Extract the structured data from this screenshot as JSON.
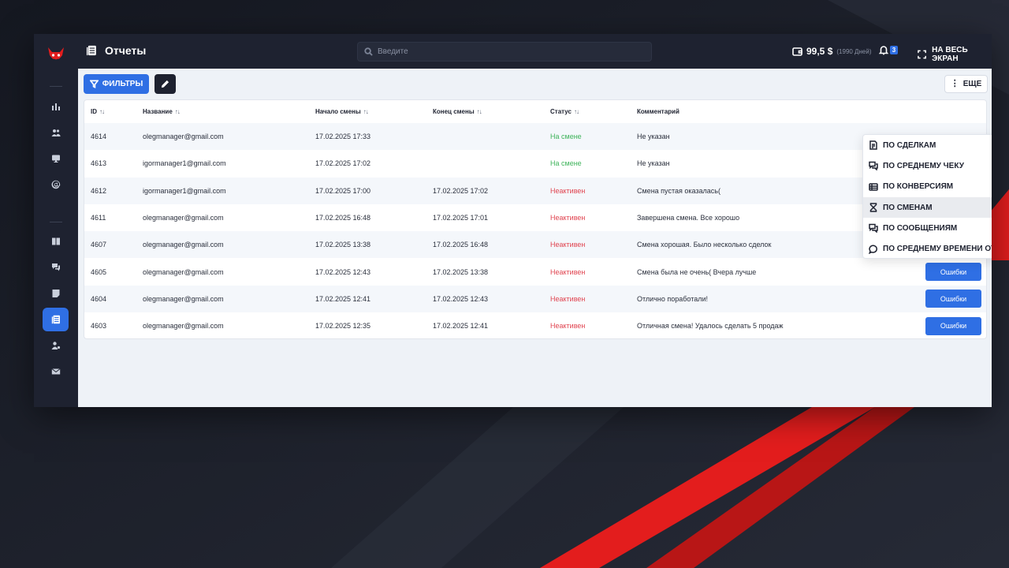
{
  "colors": {
    "accent": "#2f6fe4",
    "sidebar": "#1e2230",
    "active_status": "#3eb35a",
    "inactive_status": "#e0434f",
    "brand_red": "#e02020"
  },
  "header": {
    "title": "Отчеты",
    "title_icon": "reports-icon",
    "search_placeholder": "Введите",
    "balance_amount": "99,5 $",
    "balance_days": "(1990 Дней)",
    "notifications_count": "3",
    "fullscreen_label": "НА ВЕСЬ ЭКРАН"
  },
  "sidebar": {
    "items": [
      {
        "name": "stats",
        "icon": "bar-chart-icon",
        "active": false
      },
      {
        "name": "users",
        "icon": "users-icon",
        "active": false
      },
      {
        "name": "monitor",
        "icon": "monitor-icon",
        "active": false
      },
      {
        "name": "mentions",
        "icon": "at-icon",
        "active": false
      },
      {
        "name": "book",
        "icon": "book-icon",
        "active": false
      },
      {
        "name": "chat",
        "icon": "chat-icon",
        "active": false
      },
      {
        "name": "notes",
        "icon": "notes-icon",
        "active": false
      },
      {
        "name": "reports",
        "icon": "reports-icon",
        "active": true
      },
      {
        "name": "user-settings",
        "icon": "user-gear-icon",
        "active": false
      },
      {
        "name": "mail",
        "icon": "mail-icon",
        "active": false
      }
    ]
  },
  "toolbar": {
    "filters_label": "ФИЛЬТРЫ",
    "more_label": "ЕЩЕ"
  },
  "table": {
    "columns": [
      {
        "label": "ID",
        "sortable": true
      },
      {
        "label": "Название",
        "sortable": true
      },
      {
        "label": "Начало смены",
        "sortable": true
      },
      {
        "label": "Конец смены",
        "sortable": true
      },
      {
        "label": "Статус",
        "sortable": true
      },
      {
        "label": "Комментарий",
        "sortable": false
      }
    ],
    "sort_glyph": "↑↓",
    "error_button_label": "Ошибки",
    "rows": [
      {
        "id": "4614",
        "name": "olegmanager@gmail.com",
        "start": "17.02.2025 17:33",
        "end": "",
        "status": "На смене",
        "active": true,
        "comment": "Не указан"
      },
      {
        "id": "4613",
        "name": "igormanager1@gmail.com",
        "start": "17.02.2025 17:02",
        "end": "",
        "status": "На смене",
        "active": true,
        "comment": "Не указан"
      },
      {
        "id": "4612",
        "name": "igormanager1@gmail.com",
        "start": "17.02.2025 17:00",
        "end": "17.02.2025 17:02",
        "status": "Неактивен",
        "active": false,
        "comment": "Смена пустая оказалась("
      },
      {
        "id": "4611",
        "name": "olegmanager@gmail.com",
        "start": "17.02.2025 16:48",
        "end": "17.02.2025 17:01",
        "status": "Неактивен",
        "active": false,
        "comment": "Завершена смена. Все хорошо"
      },
      {
        "id": "4607",
        "name": "olegmanager@gmail.com",
        "start": "17.02.2025 13:38",
        "end": "17.02.2025 16:48",
        "status": "Неактивен",
        "active": false,
        "comment": "Смена хорошая. Было несколько сделок"
      },
      {
        "id": "4605",
        "name": "olegmanager@gmail.com",
        "start": "17.02.2025 12:43",
        "end": "17.02.2025 13:38",
        "status": "Неактивен",
        "active": false,
        "comment": "Смена была не очень( Вчера лучше"
      },
      {
        "id": "4604",
        "name": "olegmanager@gmail.com",
        "start": "17.02.2025 12:41",
        "end": "17.02.2025 12:43",
        "status": "Неактивен",
        "active": false,
        "comment": "Отлично поработали!"
      },
      {
        "id": "4603",
        "name": "olegmanager@gmail.com",
        "start": "17.02.2025 12:35",
        "end": "17.02.2025 12:41",
        "status": "Неактивен",
        "active": false,
        "comment": "Отличная смена! Удалось сделать 5 продаж"
      }
    ]
  },
  "dropdown": {
    "items": [
      {
        "label": "ПО СДЕЛКАМ",
        "icon": "deals-icon",
        "highlighted": false
      },
      {
        "label": "ПО СРЕДНЕМУ ЧЕКУ",
        "icon": "chat-bubbles-icon",
        "highlighted": false
      },
      {
        "label": "ПО КОНВЕРСИЯМ",
        "icon": "list-icon",
        "highlighted": false
      },
      {
        "label": "ПО СМЕНАМ",
        "icon": "hourglass-icon",
        "highlighted": true
      },
      {
        "label": "ПО СООБЩЕНИЯМ",
        "icon": "chat-bubbles-icon",
        "highlighted": false
      },
      {
        "label": "ПО СРЕДНЕМУ ВРЕМЕНИ ОТВЕТА",
        "icon": "speech-bubble-icon",
        "highlighted": false
      }
    ]
  }
}
